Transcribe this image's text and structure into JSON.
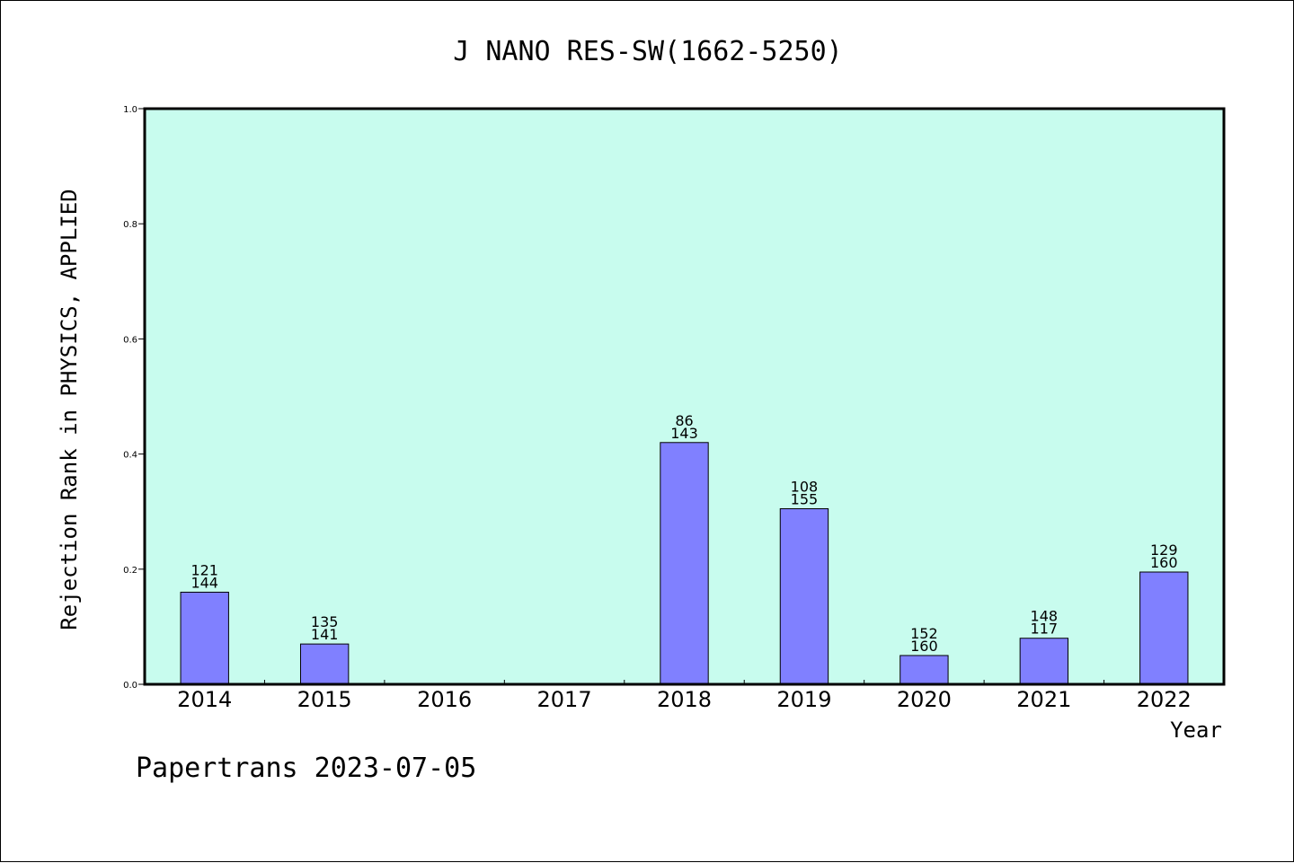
{
  "chart_data": {
    "type": "bar",
    "title": "J NANO RES-SW(1662-5250)",
    "xlabel": "Year",
    "ylabel": "Rejection Rank in PHYSICS, APPLIED",
    "ylim": [
      0,
      1.0
    ],
    "yticks": [
      "0.0",
      "0.2",
      "0.4",
      "0.6",
      "0.8",
      "1.0"
    ],
    "grid": false,
    "categories": [
      "2014",
      "2015",
      "2016",
      "2017",
      "2018",
      "2019",
      "2020",
      "2021",
      "2022"
    ],
    "values": [
      0.16,
      0.07,
      null,
      null,
      0.42,
      0.305,
      0.05,
      0.08,
      0.195
    ],
    "labels_top": [
      "121",
      "135",
      "",
      "",
      "86",
      "108",
      "152",
      "148",
      "129"
    ],
    "labels_bottom": [
      "144",
      "141",
      "",
      "",
      "143",
      "155",
      "160",
      "117",
      "160"
    ],
    "bar_color": "#8080ff",
    "plot_background": "#c8fcee"
  },
  "footer": {
    "text": "Papertrans 2023-07-05"
  }
}
